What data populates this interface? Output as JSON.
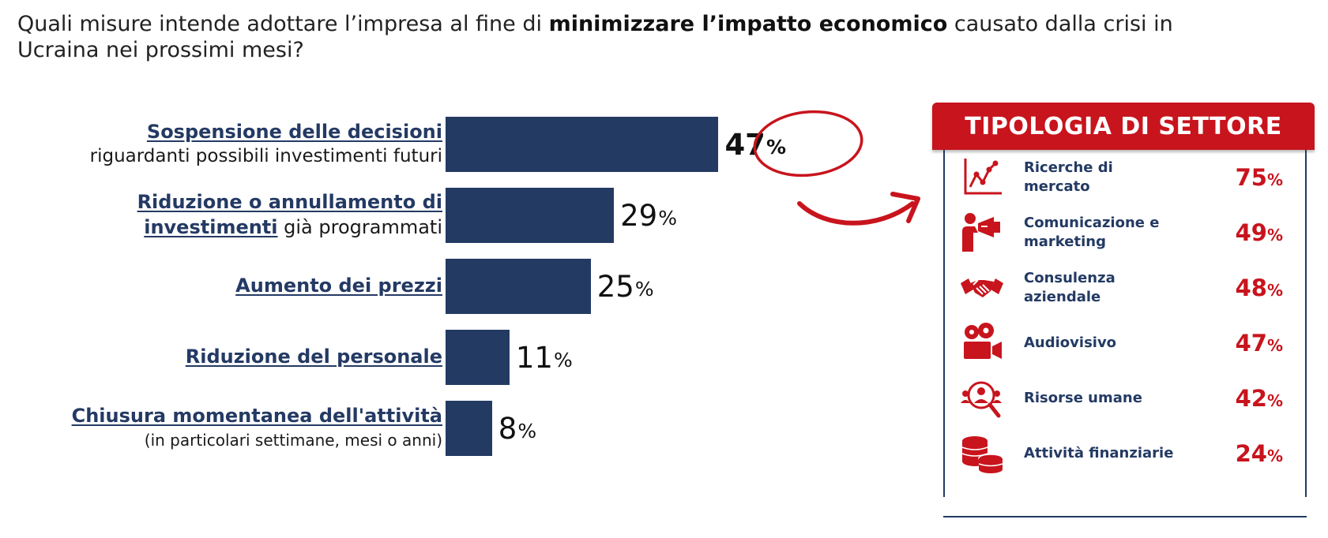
{
  "question": {
    "part1": "Quali misure intende adottare l’impresa al fine di ",
    "bold": "minimizzare l’impatto economico",
    "part2": " causato dalla crisi in Ucraina nei prossimi mesi?"
  },
  "chart_data": {
    "type": "bar",
    "orientation": "horizontal",
    "unit": "%",
    "categories": [
      {
        "keyword": "Sospensione delle decisioni",
        "rest": "",
        "line2": "riguardanti possibili investimenti futuri"
      },
      {
        "keyword": "Riduzione o annullamento di",
        "rest": "",
        "line2_keyword": "investimenti",
        "line2": " già programmati"
      },
      {
        "keyword": "Aumento dei prezzi",
        "rest": "",
        "line2": ""
      },
      {
        "keyword": "Riduzione del personale",
        "rest": "",
        "line2": ""
      },
      {
        "keyword": "Chiusura momentanea dell'attività",
        "rest": "",
        "line2": "(in particolari settimane, mesi o anni)"
      }
    ],
    "values": [
      47,
      29,
      25,
      11,
      8
    ],
    "xlim": [
      0,
      100
    ],
    "highlight_index": 0,
    "bar_color": "#233a63"
  },
  "panel": {
    "title": "TIPOLOGIA DI SETTORE",
    "header_color": "#c8141d",
    "sectors": [
      {
        "name": "Ricerche di mercato",
        "value": 75,
        "icon": "line-chart-icon"
      },
      {
        "name": "Comunicazione e marketing",
        "value": 49,
        "icon": "megaphone-icon"
      },
      {
        "name": "Consulenza aziendale",
        "value": 48,
        "icon": "handshake-icon"
      },
      {
        "name": "Audiovisivo",
        "value": 47,
        "icon": "movie-camera-icon"
      },
      {
        "name": "Risorse umane",
        "value": 42,
        "icon": "people-search-icon"
      },
      {
        "name": "Attività finanziarie",
        "value": 24,
        "icon": "coins-icon"
      }
    ]
  },
  "percent_sign": "%"
}
